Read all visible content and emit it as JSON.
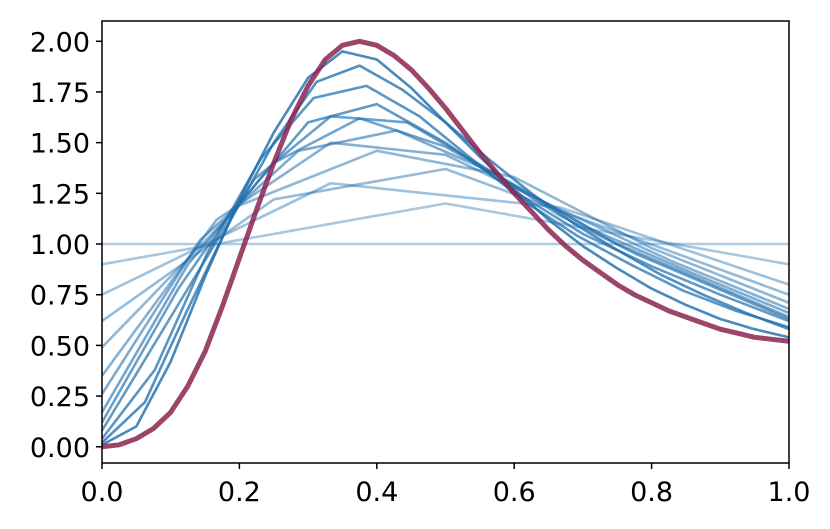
{
  "chart_data": {
    "type": "line",
    "title": "",
    "xlabel": "",
    "ylabel": "",
    "xlim": [
      0,
      1
    ],
    "ylim": [
      -0.08,
      2.1
    ],
    "grid": false,
    "legend": "none",
    "x_ticks": [
      "0.0",
      "0.2",
      "0.4",
      "0.6",
      "0.8",
      "1.0"
    ],
    "y_ticks": [
      "0.00",
      "0.25",
      "0.50",
      "0.75",
      "1.00",
      "1.25",
      "1.50",
      "1.75",
      "2.00"
    ],
    "x_tick_values": [
      0,
      0.2,
      0.4,
      0.6,
      0.8,
      1.0
    ],
    "y_tick_values": [
      0,
      0.25,
      0.5,
      0.75,
      1.0,
      1.25,
      1.5,
      1.75,
      2.0
    ],
    "series_color": "#1f6fae",
    "final_curve_color": "#8b2450",
    "description": "Family of piecewise-linear approximations converging to a smooth density peaking near x=0.38",
    "series": [
      {
        "x": [
          0,
          1
        ],
        "y": [
          1.0,
          1.0
        ]
      },
      {
        "x": [
          0,
          0.5,
          1
        ],
        "y": [
          0.9,
          1.2,
          0.9
        ]
      },
      {
        "x": [
          0,
          0.333,
          0.667,
          1
        ],
        "y": [
          0.75,
          1.3,
          1.18,
          0.8
        ]
      },
      {
        "x": [
          0,
          0.25,
          0.5,
          0.75,
          1
        ],
        "y": [
          0.62,
          1.22,
          1.37,
          1.06,
          0.75
        ]
      },
      {
        "x": [
          0,
          0.2,
          0.4,
          0.6,
          0.8,
          1
        ],
        "y": [
          0.49,
          1.19,
          1.46,
          1.33,
          0.98,
          0.71
        ]
      },
      {
        "x": [
          0,
          0.167,
          0.333,
          0.5,
          0.667,
          0.833,
          1
        ],
        "y": [
          0.35,
          1.12,
          1.5,
          1.44,
          1.17,
          0.91,
          0.68
        ]
      },
      {
        "x": [
          0,
          0.143,
          0.286,
          0.429,
          0.571,
          0.714,
          0.857,
          1
        ],
        "y": [
          0.26,
          1.02,
          1.46,
          1.56,
          1.35,
          1.07,
          0.86,
          0.66
        ]
      },
      {
        "x": [
          0,
          0.125,
          0.25,
          0.375,
          0.5,
          0.625,
          0.75,
          0.875,
          1
        ],
        "y": [
          0.17,
          0.9,
          1.4,
          1.62,
          1.48,
          1.24,
          1.0,
          0.82,
          0.64
        ]
      },
      {
        "x": [
          0,
          0.111,
          0.222,
          0.333,
          0.444,
          0.556,
          0.667,
          0.778,
          0.889,
          1
        ],
        "y": [
          0.12,
          0.78,
          1.32,
          1.63,
          1.6,
          1.38,
          1.14,
          0.95,
          0.79,
          0.63
        ]
      },
      {
        "x": [
          0,
          0.1,
          0.2,
          0.3,
          0.4,
          0.5,
          0.6,
          0.7,
          0.8,
          0.9,
          1
        ],
        "y": [
          0.08,
          0.64,
          1.2,
          1.6,
          1.69,
          1.5,
          1.26,
          1.05,
          0.89,
          0.75,
          0.62
        ]
      },
      {
        "x": [
          0,
          0.077,
          0.154,
          0.231,
          0.308,
          0.385,
          0.462,
          0.538,
          0.615,
          0.692,
          0.769,
          0.846,
          0.923,
          1
        ],
        "y": [
          0.04,
          0.38,
          0.96,
          1.42,
          1.72,
          1.78,
          1.63,
          1.42,
          1.21,
          1.04,
          0.9,
          0.77,
          0.67,
          0.59
        ]
      },
      {
        "x": [
          0,
          0.0625,
          0.125,
          0.1875,
          0.25,
          0.3125,
          0.375,
          0.4375,
          0.5,
          0.5625,
          0.625,
          0.6875,
          0.75,
          0.8125,
          0.875,
          0.9375,
          1
        ],
        "y": [
          0.02,
          0.22,
          0.68,
          1.12,
          1.5,
          1.8,
          1.88,
          1.76,
          1.6,
          1.42,
          1.25,
          1.1,
          0.97,
          0.85,
          0.75,
          0.66,
          0.58
        ]
      },
      {
        "x": [
          0,
          0.05,
          0.1,
          0.15,
          0.2,
          0.25,
          0.3,
          0.35,
          0.4,
          0.45,
          0.5,
          0.55,
          0.6,
          0.65,
          0.7,
          0.75,
          0.8,
          0.85,
          0.9,
          0.95,
          1
        ],
        "y": [
          0.01,
          0.1,
          0.42,
          0.84,
          1.22,
          1.55,
          1.82,
          1.95,
          1.91,
          1.77,
          1.6,
          1.43,
          1.27,
          1.12,
          0.99,
          0.88,
          0.78,
          0.7,
          0.63,
          0.58,
          0.54
        ]
      },
      {
        "x": [
          0,
          0.025,
          0.05,
          0.075,
          0.1,
          0.125,
          0.15,
          0.175,
          0.2,
          0.225,
          0.25,
          0.275,
          0.3,
          0.325,
          0.35,
          0.375,
          0.4,
          0.425,
          0.45,
          0.475,
          0.5,
          0.525,
          0.55,
          0.575,
          0.6,
          0.625,
          0.65,
          0.675,
          0.7,
          0.725,
          0.75,
          0.775,
          0.8,
          0.825,
          0.85,
          0.875,
          0.9,
          0.925,
          0.95,
          0.975,
          1
        ],
        "y": [
          0.0,
          0.01,
          0.04,
          0.09,
          0.17,
          0.3,
          0.47,
          0.69,
          0.93,
          1.17,
          1.4,
          1.61,
          1.78,
          1.91,
          1.98,
          2.0,
          1.98,
          1.93,
          1.86,
          1.77,
          1.67,
          1.56,
          1.45,
          1.35,
          1.25,
          1.16,
          1.07,
          0.99,
          0.92,
          0.86,
          0.8,
          0.75,
          0.71,
          0.67,
          0.64,
          0.61,
          0.58,
          0.56,
          0.54,
          0.53,
          0.52
        ]
      }
    ]
  }
}
